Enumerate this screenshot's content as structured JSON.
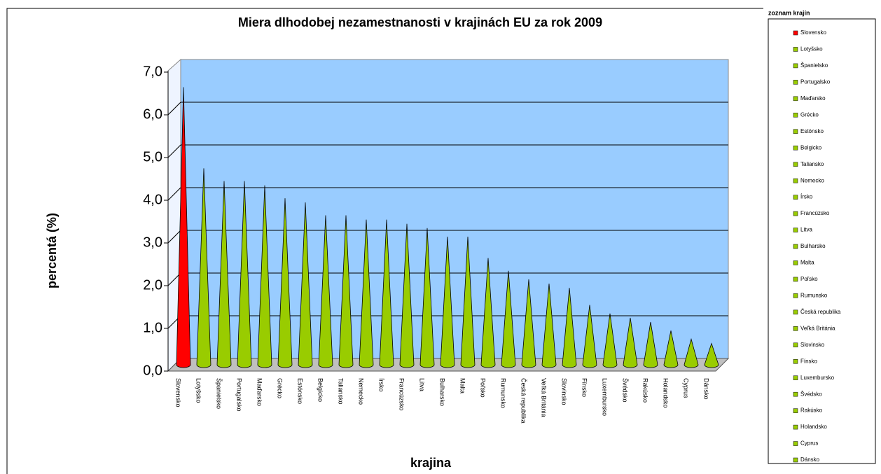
{
  "chart_data": {
    "type": "cone",
    "title": "Miera dlhodobej nezamestnanosti v krajinách EU za rok 2009",
    "y_label": "percentá (%)",
    "x_label": "krajina",
    "legend_title": "zoznam krajín",
    "categories": [
      "Slovensko",
      "Lotyšsko",
      "Španielsko",
      "Portugalsko",
      "Maďarsko",
      "Grécko",
      "Estónsko",
      "Belgicko",
      "Taliansko",
      "Nemecko",
      "Írsko",
      "Francúzsko",
      "Litva",
      "Bulharsko",
      "Malta",
      "Poľsko",
      "Rumunsko",
      "Česká republika",
      "Veľká Británia",
      "Slovinsko",
      "Fínsko",
      "Luxembursko",
      "Švédsko",
      "Rakúsko",
      "Holandsko",
      "Cyprus",
      "Dánsko"
    ],
    "values": [
      6.5,
      4.6,
      4.3,
      4.3,
      4.2,
      3.9,
      3.8,
      3.5,
      3.5,
      3.4,
      3.4,
      3.3,
      3.2,
      3.0,
      3.0,
      2.5,
      2.2,
      2.0,
      1.9,
      1.8,
      1.4,
      1.2,
      1.1,
      1.0,
      0.8,
      0.6,
      0.5
    ],
    "colors": [
      "#ff0000",
      "#99cc00",
      "#99cc00",
      "#99cc00",
      "#99cc00",
      "#99cc00",
      "#99cc00",
      "#99cc00",
      "#99cc00",
      "#99cc00",
      "#99cc00",
      "#99cc00",
      "#99cc00",
      "#99cc00",
      "#99cc00",
      "#99cc00",
      "#99cc00",
      "#99cc00",
      "#99cc00",
      "#99cc00",
      "#99cc00",
      "#99cc00",
      "#99cc00",
      "#99cc00",
      "#99cc00",
      "#99cc00",
      "#99cc00"
    ],
    "ylim": [
      0,
      7
    ],
    "yticks": [
      {
        "value": 0,
        "label": "0,0"
      },
      {
        "value": 1,
        "label": "1,0"
      },
      {
        "value": 2,
        "label": "2,0"
      },
      {
        "value": 3,
        "label": "3,0"
      },
      {
        "value": 4,
        "label": "4,0"
      },
      {
        "value": 5,
        "label": "5,0"
      },
      {
        "value": 6,
        "label": "6,0"
      },
      {
        "value": 7,
        "label": "7,0"
      }
    ],
    "grid": true,
    "legend": "right"
  }
}
